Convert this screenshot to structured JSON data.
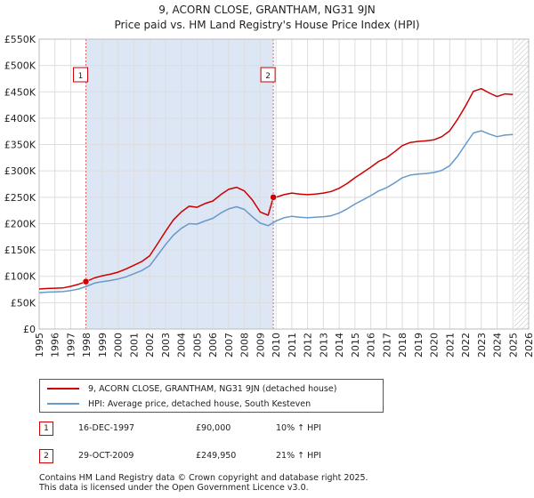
{
  "chart_data": {
    "type": "line",
    "title": "9, ACORN CLOSE, GRANTHAM, NG31 9JN",
    "subtitle": "Price paid vs. HM Land Registry's House Price Index (HPI)",
    "xlim": [
      1995,
      2026
    ],
    "ylim": [
      0,
      550000
    ],
    "x_ticks": [
      "1995",
      "1996",
      "1997",
      "1998",
      "1999",
      "2000",
      "2001",
      "2002",
      "2003",
      "2004",
      "2005",
      "2006",
      "2007",
      "2008",
      "2009",
      "2010",
      "2011",
      "2012",
      "2013",
      "2014",
      "2015",
      "2016",
      "2017",
      "2018",
      "2019",
      "2020",
      "2021",
      "2022",
      "2023",
      "2024",
      "2025",
      "2026"
    ],
    "y_ticks": [
      {
        "value": 0,
        "label": "£0"
      },
      {
        "value": 50000,
        "label": "£50K"
      },
      {
        "value": 100000,
        "label": "£100K"
      },
      {
        "value": 150000,
        "label": "£150K"
      },
      {
        "value": 200000,
        "label": "£200K"
      },
      {
        "value": 250000,
        "label": "£250K"
      },
      {
        "value": 300000,
        "label": "£300K"
      },
      {
        "value": 350000,
        "label": "£350K"
      },
      {
        "value": 400000,
        "label": "£400K"
      },
      {
        "value": 450000,
        "label": "£450K"
      },
      {
        "value": 500000,
        "label": "£500K"
      },
      {
        "value": 550000,
        "label": "£550K"
      }
    ],
    "grid": true,
    "shaded_range": [
      1997.96,
      2009.83
    ],
    "forecast_start": 2025.1,
    "colors": {
      "property": "#cc0000",
      "hpi": "#6699cc",
      "shade": "#dde6f5",
      "grid": "#dddddd",
      "marker_line": "#dd6666"
    },
    "series": [
      {
        "name": "9, ACORN CLOSE, GRANTHAM, NG31 9JN (detached house)",
        "color": "#cc0000",
        "x": [
          1995.0,
          1995.5,
          1996.0,
          1996.5,
          1997.0,
          1997.5,
          1997.96,
          1998.5,
          1999.0,
          1999.5,
          2000.0,
          2000.5,
          2001.0,
          2001.5,
          2002.0,
          2002.5,
          2003.0,
          2003.5,
          2004.0,
          2004.5,
          2005.0,
          2005.5,
          2006.0,
          2006.5,
          2007.0,
          2007.5,
          2008.0,
          2008.5,
          2009.0,
          2009.5,
          2009.83,
          2010.0,
          2010.5,
          2011.0,
          2011.5,
          2012.0,
          2012.5,
          2013.0,
          2013.5,
          2014.0,
          2014.5,
          2015.0,
          2015.5,
          2016.0,
          2016.5,
          2017.0,
          2017.5,
          2018.0,
          2018.5,
          2019.0,
          2019.5,
          2020.0,
          2020.5,
          2021.0,
          2021.5,
          2022.0,
          2022.5,
          2023.0,
          2023.5,
          2024.0,
          2024.5,
          2025.0
        ],
        "y": [
          76000,
          77000,
          77500,
          78000,
          81000,
          85000,
          90000,
          97000,
          101000,
          104000,
          108000,
          114000,
          121000,
          128000,
          139000,
          162000,
          185000,
          207000,
          222000,
          233000,
          231000,
          238000,
          243000,
          255000,
          265000,
          269000,
          262000,
          245000,
          222000,
          216000,
          249950,
          250000,
          255000,
          258000,
          256000,
          255000,
          256000,
          258000,
          261000,
          267000,
          276000,
          287000,
          297000,
          307000,
          318000,
          325000,
          336000,
          348000,
          354000,
          356000,
          357000,
          359000,
          365000,
          376000,
          398000,
          423000,
          451000,
          456000,
          448000,
          441000,
          446000,
          445000
        ]
      },
      {
        "name": "HPI: Average price, detached house, South Kesteven",
        "color": "#6699cc",
        "x": [
          1995.0,
          1995.5,
          1996.0,
          1996.5,
          1997.0,
          1997.5,
          1998.0,
          1998.5,
          1999.0,
          1999.5,
          2000.0,
          2000.5,
          2001.0,
          2001.5,
          2002.0,
          2002.5,
          2003.0,
          2003.5,
          2004.0,
          2004.5,
          2005.0,
          2005.5,
          2006.0,
          2006.5,
          2007.0,
          2007.5,
          2008.0,
          2008.5,
          2009.0,
          2009.5,
          2010.0,
          2010.5,
          2011.0,
          2011.5,
          2012.0,
          2012.5,
          2013.0,
          2013.5,
          2014.0,
          2014.5,
          2015.0,
          2015.5,
          2016.0,
          2016.5,
          2017.0,
          2017.5,
          2018.0,
          2018.5,
          2019.0,
          2019.5,
          2020.0,
          2020.5,
          2021.0,
          2021.5,
          2022.0,
          2022.5,
          2023.0,
          2023.5,
          2024.0,
          2024.5,
          2025.0
        ],
        "y": [
          69000,
          70000,
          70500,
          71000,
          73000,
          76000,
          81000,
          87000,
          90000,
          92000,
          95000,
          99000,
          105000,
          111000,
          120000,
          140000,
          160000,
          178000,
          191000,
          200000,
          199000,
          205000,
          210000,
          220000,
          228000,
          232000,
          227000,
          213000,
          201000,
          196000,
          205000,
          211000,
          214000,
          212000,
          211000,
          212000,
          213000,
          215000,
          220000,
          228000,
          237000,
          245000,
          253000,
          262000,
          268000,
          277000,
          287000,
          292000,
          294000,
          295000,
          297000,
          301000,
          310000,
          328000,
          350000,
          372000,
          376000,
          370000,
          365000,
          368000,
          369000
        ]
      }
    ],
    "transactions": [
      {
        "id": "1",
        "x": 1997.96,
        "y": 90000
      },
      {
        "id": "2",
        "x": 2009.83,
        "y": 249950
      }
    ]
  },
  "legend": {
    "property_label": "9, ACORN CLOSE, GRANTHAM, NG31 9JN (detached house)",
    "hpi_label": "HPI: Average price, detached house, South Kesteven"
  },
  "table": [
    {
      "id": "1",
      "date": "16-DEC-1997",
      "price": "£90,000",
      "hpi": "10% ↑ HPI"
    },
    {
      "id": "2",
      "date": "29-OCT-2009",
      "price": "£249,950",
      "hpi": "21% ↑ HPI"
    }
  ],
  "footer": {
    "line1": "Contains HM Land Registry data © Crown copyright and database right 2025.",
    "line2": "This data is licensed under the Open Government Licence v3.0."
  }
}
